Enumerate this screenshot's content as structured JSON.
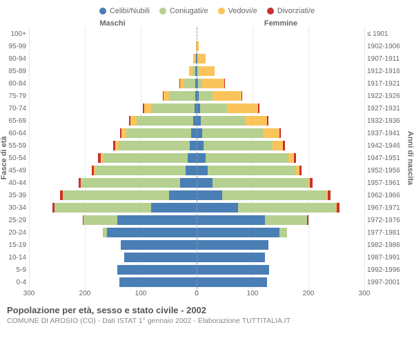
{
  "chart": {
    "type": "population-pyramid",
    "background_color": "#ffffff",
    "grid_color": "#e8e8e8",
    "center_line_color": "#999999",
    "text_color": "#666666",
    "xmax": 300,
    "xticks": [
      300,
      200,
      100,
      0,
      100,
      200,
      300
    ],
    "legend": [
      {
        "label": "Celibi/Nubili",
        "color": "#4a7fb6"
      },
      {
        "label": "Coniugati/e",
        "color": "#b6d090"
      },
      {
        "label": "Vedovi/e",
        "color": "#fbc45a"
      },
      {
        "label": "Divorziati/e",
        "color": "#c73030"
      }
    ],
    "headers": {
      "male": "Maschi",
      "female": "Femmine"
    },
    "axis_left_title": "Fasce di età",
    "axis_right_title": "Anni di nascita",
    "age_bands": [
      {
        "age": "100+",
        "birth": "≤ 1901",
        "m": [
          0,
          0,
          0,
          0
        ],
        "f": [
          0,
          0,
          0,
          0
        ]
      },
      {
        "age": "95-99",
        "birth": "1902-1906",
        "m": [
          0,
          0,
          1,
          0
        ],
        "f": [
          0,
          0,
          4,
          0
        ]
      },
      {
        "age": "90-94",
        "birth": "1907-1911",
        "m": [
          1,
          1,
          4,
          0
        ],
        "f": [
          1,
          1,
          14,
          0
        ]
      },
      {
        "age": "85-89",
        "birth": "1912-1916",
        "m": [
          2,
          6,
          6,
          0
        ],
        "f": [
          1,
          3,
          28,
          0
        ]
      },
      {
        "age": "80-84",
        "birth": "1917-1921",
        "m": [
          2,
          20,
          8,
          1
        ],
        "f": [
          2,
          8,
          40,
          1
        ]
      },
      {
        "age": "75-79",
        "birth": "1922-1926",
        "m": [
          3,
          46,
          10,
          1
        ],
        "f": [
          4,
          24,
          52,
          1
        ]
      },
      {
        "age": "70-74",
        "birth": "1927-1931",
        "m": [
          4,
          78,
          12,
          2
        ],
        "f": [
          6,
          48,
          56,
          2
        ]
      },
      {
        "age": "65-69",
        "birth": "1932-1936",
        "m": [
          6,
          102,
          10,
          3
        ],
        "f": [
          8,
          78,
          40,
          3
        ]
      },
      {
        "age": "60-64",
        "birth": "1937-1941",
        "m": [
          10,
          116,
          8,
          3
        ],
        "f": [
          10,
          108,
          30,
          3
        ]
      },
      {
        "age": "55-59",
        "birth": "1942-1946",
        "m": [
          12,
          128,
          6,
          4
        ],
        "f": [
          12,
          124,
          18,
          4
        ]
      },
      {
        "age": "50-54",
        "birth": "1947-1951",
        "m": [
          16,
          152,
          4,
          4
        ],
        "f": [
          16,
          148,
          10,
          4
        ]
      },
      {
        "age": "45-49",
        "birth": "1952-1956",
        "m": [
          20,
          162,
          2,
          4
        ],
        "f": [
          20,
          158,
          6,
          4
        ]
      },
      {
        "age": "40-44",
        "birth": "1957-1961",
        "m": [
          30,
          176,
          1,
          4
        ],
        "f": [
          28,
          172,
          3,
          4
        ]
      },
      {
        "age": "35-39",
        "birth": "1962-1966",
        "m": [
          50,
          188,
          1,
          5
        ],
        "f": [
          46,
          186,
          2,
          5
        ]
      },
      {
        "age": "30-34",
        "birth": "1967-1971",
        "m": [
          82,
          172,
          0,
          4
        ],
        "f": [
          74,
          176,
          1,
          5
        ]
      },
      {
        "age": "25-29",
        "birth": "1972-1976",
        "m": [
          142,
          60,
          0,
          2
        ],
        "f": [
          122,
          76,
          0,
          2
        ]
      },
      {
        "age": "20-24",
        "birth": "1977-1981",
        "m": [
          160,
          8,
          0,
          0
        ],
        "f": [
          148,
          14,
          0,
          0
        ]
      },
      {
        "age": "15-19",
        "birth": "1982-1986",
        "m": [
          136,
          0,
          0,
          0
        ],
        "f": [
          128,
          0,
          0,
          0
        ]
      },
      {
        "age": "10-14",
        "birth": "1987-1991",
        "m": [
          130,
          0,
          0,
          0
        ],
        "f": [
          122,
          0,
          0,
          0
        ]
      },
      {
        "age": "5-9",
        "birth": "1992-1996",
        "m": [
          142,
          0,
          0,
          0
        ],
        "f": [
          130,
          0,
          0,
          0
        ]
      },
      {
        "age": "0-4",
        "birth": "1997-2001",
        "m": [
          138,
          0,
          0,
          0
        ],
        "f": [
          126,
          0,
          0,
          0
        ]
      }
    ]
  },
  "footer": {
    "title": "Popolazione per età, sesso e stato civile - 2002",
    "subtitle": "COMUNE DI AROSIO (CO) - Dati ISTAT 1° gennaio 2002 - Elaborazione TUTTITALIA.IT"
  }
}
